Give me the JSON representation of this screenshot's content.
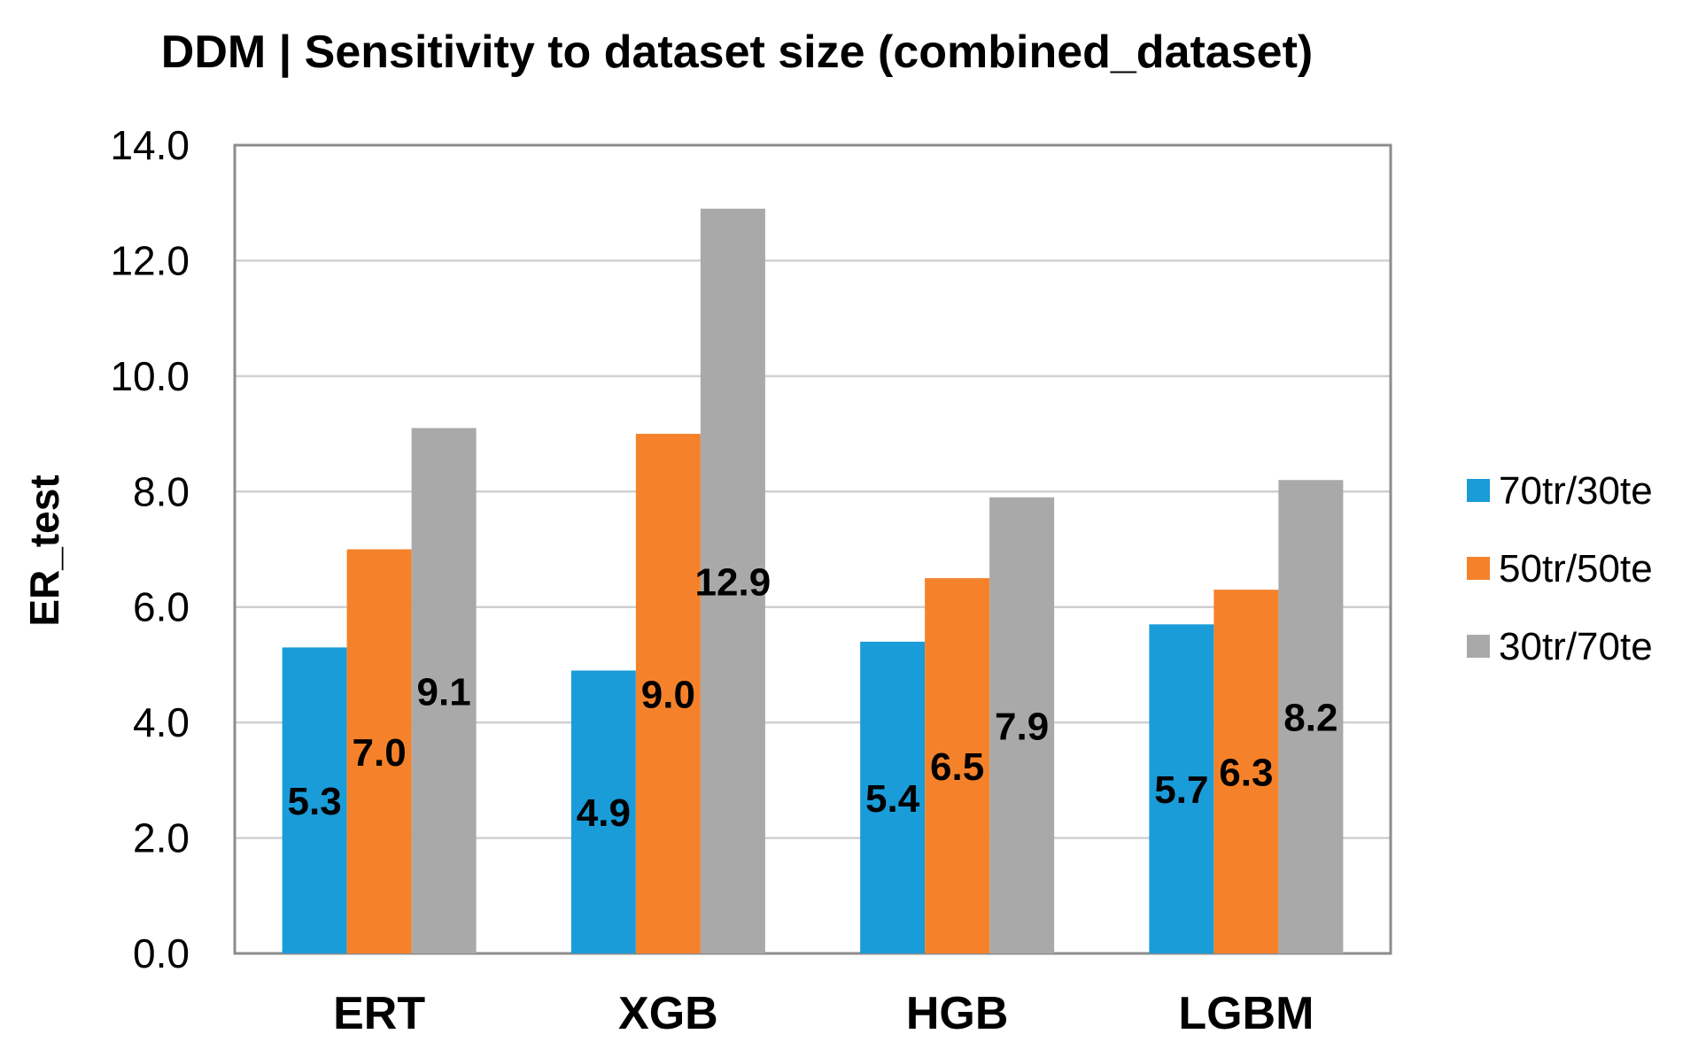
{
  "chart_data": {
    "type": "bar",
    "title": "DDM | Sensitivity to dataset size (combined_dataset)",
    "xlabel": "",
    "ylabel": "ER_test",
    "ylim": [
      0,
      14
    ],
    "yticks": [
      "0.0",
      "2.0",
      "4.0",
      "6.0",
      "8.0",
      "10.0",
      "12.0",
      "14.0"
    ],
    "grid": true,
    "legend_position": "right",
    "categories": [
      "ERT",
      "XGB",
      "HGB",
      "LGBM"
    ],
    "series": [
      {
        "name": "70tr/30te",
        "color": "#1a9cd8",
        "values": [
          5.3,
          4.9,
          5.4,
          5.7
        ],
        "labels": [
          "5.3",
          "4.9",
          "5.4",
          "5.7"
        ]
      },
      {
        "name": "50tr/50te",
        "color": "#f5822a",
        "values": [
          7.0,
          9.0,
          6.5,
          6.3
        ],
        "labels": [
          "7.0",
          "9.0",
          "6.5",
          "6.3"
        ]
      },
      {
        "name": "30tr/70te",
        "color": "#a9a9a9",
        "values": [
          9.1,
          12.9,
          7.9,
          8.2
        ],
        "labels": [
          "9.1",
          "12.9",
          "7.9",
          "8.2"
        ]
      }
    ]
  }
}
